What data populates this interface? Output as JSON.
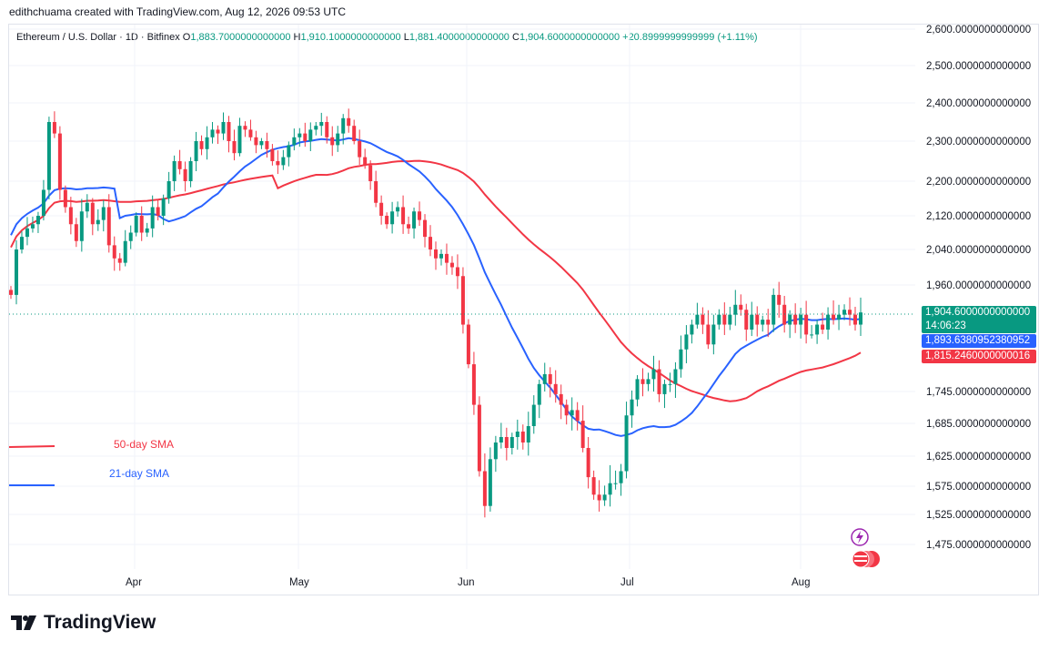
{
  "header": {
    "created": "edithchuama created with TradingView.com, Aug 12, 2026 09:53 UTC"
  },
  "symbol": {
    "name": "Ethereum / U.S. Dollar · 1D · Bitfinex",
    "open_label": "O",
    "open": "1,883.7000000000000",
    "high_label": "H",
    "high": "1,910.1000000000000",
    "low_label": "L",
    "low": "1,881.4000000000000",
    "close_label": "C",
    "close": "1,904.6000000000000",
    "change": "+20.8999999999999 (+1.11%)"
  },
  "price_tags": {
    "last_price": "1,904.6000000000000",
    "countdown": "14:06:23",
    "sma21_value": "1,893.6380952380952",
    "sma50_value": "1,815.2460000000016"
  },
  "branding": {
    "logo_text": "TradingView"
  },
  "colors": {
    "up": "#089981",
    "down": "#f23645",
    "sma21": "#2962ff",
    "sma50": "#f23645"
  },
  "chart_data": {
    "type": "candlestick",
    "title": "Ethereum / U.S. Dollar · 1D · Bitfinex",
    "y_axis_ticks": [
      "2,600.0000000000000",
      "2,500.0000000000000",
      "2,400.0000000000000",
      "2,300.0000000000000",
      "2,200.0000000000000",
      "2,120.0000000000000",
      "2,040.0000000000000",
      "1,960.0000000000000",
      "1,745.0000000000000",
      "1,685.0000000000000",
      "1,625.0000000000000",
      "1,575.0000000000000",
      "1,525.0000000000000",
      "1,475.0000000000000"
    ],
    "x_axis_ticks": [
      "Apr",
      "May",
      "Jun",
      "Jul",
      "Aug"
    ],
    "legend": [
      {
        "name": "50-day SMA",
        "color": "#f23645"
      },
      {
        "name": "21-day SMA",
        "color": "#2962ff"
      }
    ],
    "closes": [
      1940,
      2040,
      2070,
      2090,
      2100,
      2120,
      2180,
      2350,
      2320,
      2180,
      2140,
      2100,
      2060,
      2130,
      2150,
      2100,
      2110,
      2140,
      2050,
      2020,
      2010,
      2060,
      2080,
      2120,
      2080,
      2090,
      2140,
      2120,
      2160,
      2200,
      2250,
      2230,
      2200,
      2250,
      2300,
      2280,
      2310,
      2330,
      2320,
      2350,
      2300,
      2270,
      2340,
      2330,
      2310,
      2290,
      2300,
      2280,
      2250,
      2240,
      2260,
      2290,
      2310,
      2320,
      2300,
      2330,
      2340,
      2350,
      2310,
      2290,
      2320,
      2360,
      2340,
      2300,
      2260,
      2240,
      2200,
      2150,
      2120,
      2100,
      2130,
      2140,
      2100,
      2090,
      2130,
      2110,
      2070,
      2040,
      2020,
      2030,
      2010,
      2000,
      1980,
      1880,
      1800,
      1720,
      1600,
      1540,
      1620,
      1650,
      1660,
      1640,
      1660,
      1670,
      1650,
      1680,
      1720,
      1760,
      1780,
      1760,
      1740,
      1720,
      1700,
      1710,
      1690,
      1640,
      1590,
      1560,
      1550,
      1560,
      1580,
      1580,
      1600,
      1700,
      1730,
      1770,
      1760,
      1770,
      1790,
      1740,
      1760,
      1760,
      1790,
      1830,
      1860,
      1880,
      1900,
      1880,
      1840,
      1880,
      1900,
      1880,
      1900,
      1920,
      1910,
      1870,
      1900,
      1880,
      1890,
      1880,
      1940,
      1920,
      1880,
      1900,
      1880,
      1900,
      1860,
      1860,
      1880,
      1870,
      1900,
      1890,
      1900,
      1910,
      1900,
      1880,
      1904.6
    ],
    "sma21_end": 1893.638095,
    "sma50_end": 1815.246
  }
}
